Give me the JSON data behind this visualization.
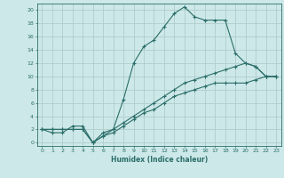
{
  "xlabel": "Humidex (Indice chaleur)",
  "bg_color": "#cde8e8",
  "grid_color": "#b0cccc",
  "line_color": "#2a6e6a",
  "xlim": [
    -0.5,
    23.5
  ],
  "ylim": [
    -0.5,
    21
  ],
  "xticks": [
    0,
    1,
    2,
    3,
    4,
    5,
    6,
    7,
    8,
    9,
    10,
    11,
    12,
    13,
    14,
    15,
    16,
    17,
    18,
    19,
    20,
    21,
    22,
    23
  ],
  "yticks": [
    0,
    2,
    4,
    6,
    8,
    10,
    12,
    14,
    16,
    18,
    20
  ],
  "series1_x": [
    0,
    1,
    2,
    3,
    4,
    5,
    6,
    7,
    8,
    9,
    10,
    11,
    12,
    13,
    14,
    15,
    16,
    17,
    18,
    19,
    20,
    21,
    22,
    23
  ],
  "series1_y": [
    2,
    1.5,
    1.5,
    2.5,
    2.5,
    0,
    1.5,
    2,
    6.5,
    12,
    14.5,
    15.5,
    17.5,
    19.5,
    20.5,
    19,
    18.5,
    18.5,
    18.5,
    13.5,
    12,
    11.5,
    10,
    10
  ],
  "series2_x": [
    0,
    1,
    2,
    3,
    4,
    5,
    6,
    7,
    8,
    9,
    10,
    11,
    12,
    13,
    14,
    15,
    16,
    17,
    18,
    19,
    20,
    21,
    22,
    23
  ],
  "series2_y": [
    2,
    2,
    2,
    2,
    2,
    0,
    1,
    2,
    3,
    4,
    5,
    6,
    7,
    8,
    9,
    9.5,
    10,
    10.5,
    11,
    11.5,
    12,
    11.5,
    10,
    10
  ],
  "series3_x": [
    0,
    1,
    2,
    3,
    4,
    5,
    6,
    7,
    8,
    9,
    10,
    11,
    12,
    13,
    14,
    15,
    16,
    17,
    18,
    19,
    20,
    21,
    22,
    23
  ],
  "series3_y": [
    2,
    2,
    2,
    2,
    2,
    0,
    1,
    1.5,
    2.5,
    3.5,
    4.5,
    5,
    6,
    7,
    7.5,
    8,
    8.5,
    9,
    9,
    9,
    9,
    9.5,
    10,
    10
  ]
}
